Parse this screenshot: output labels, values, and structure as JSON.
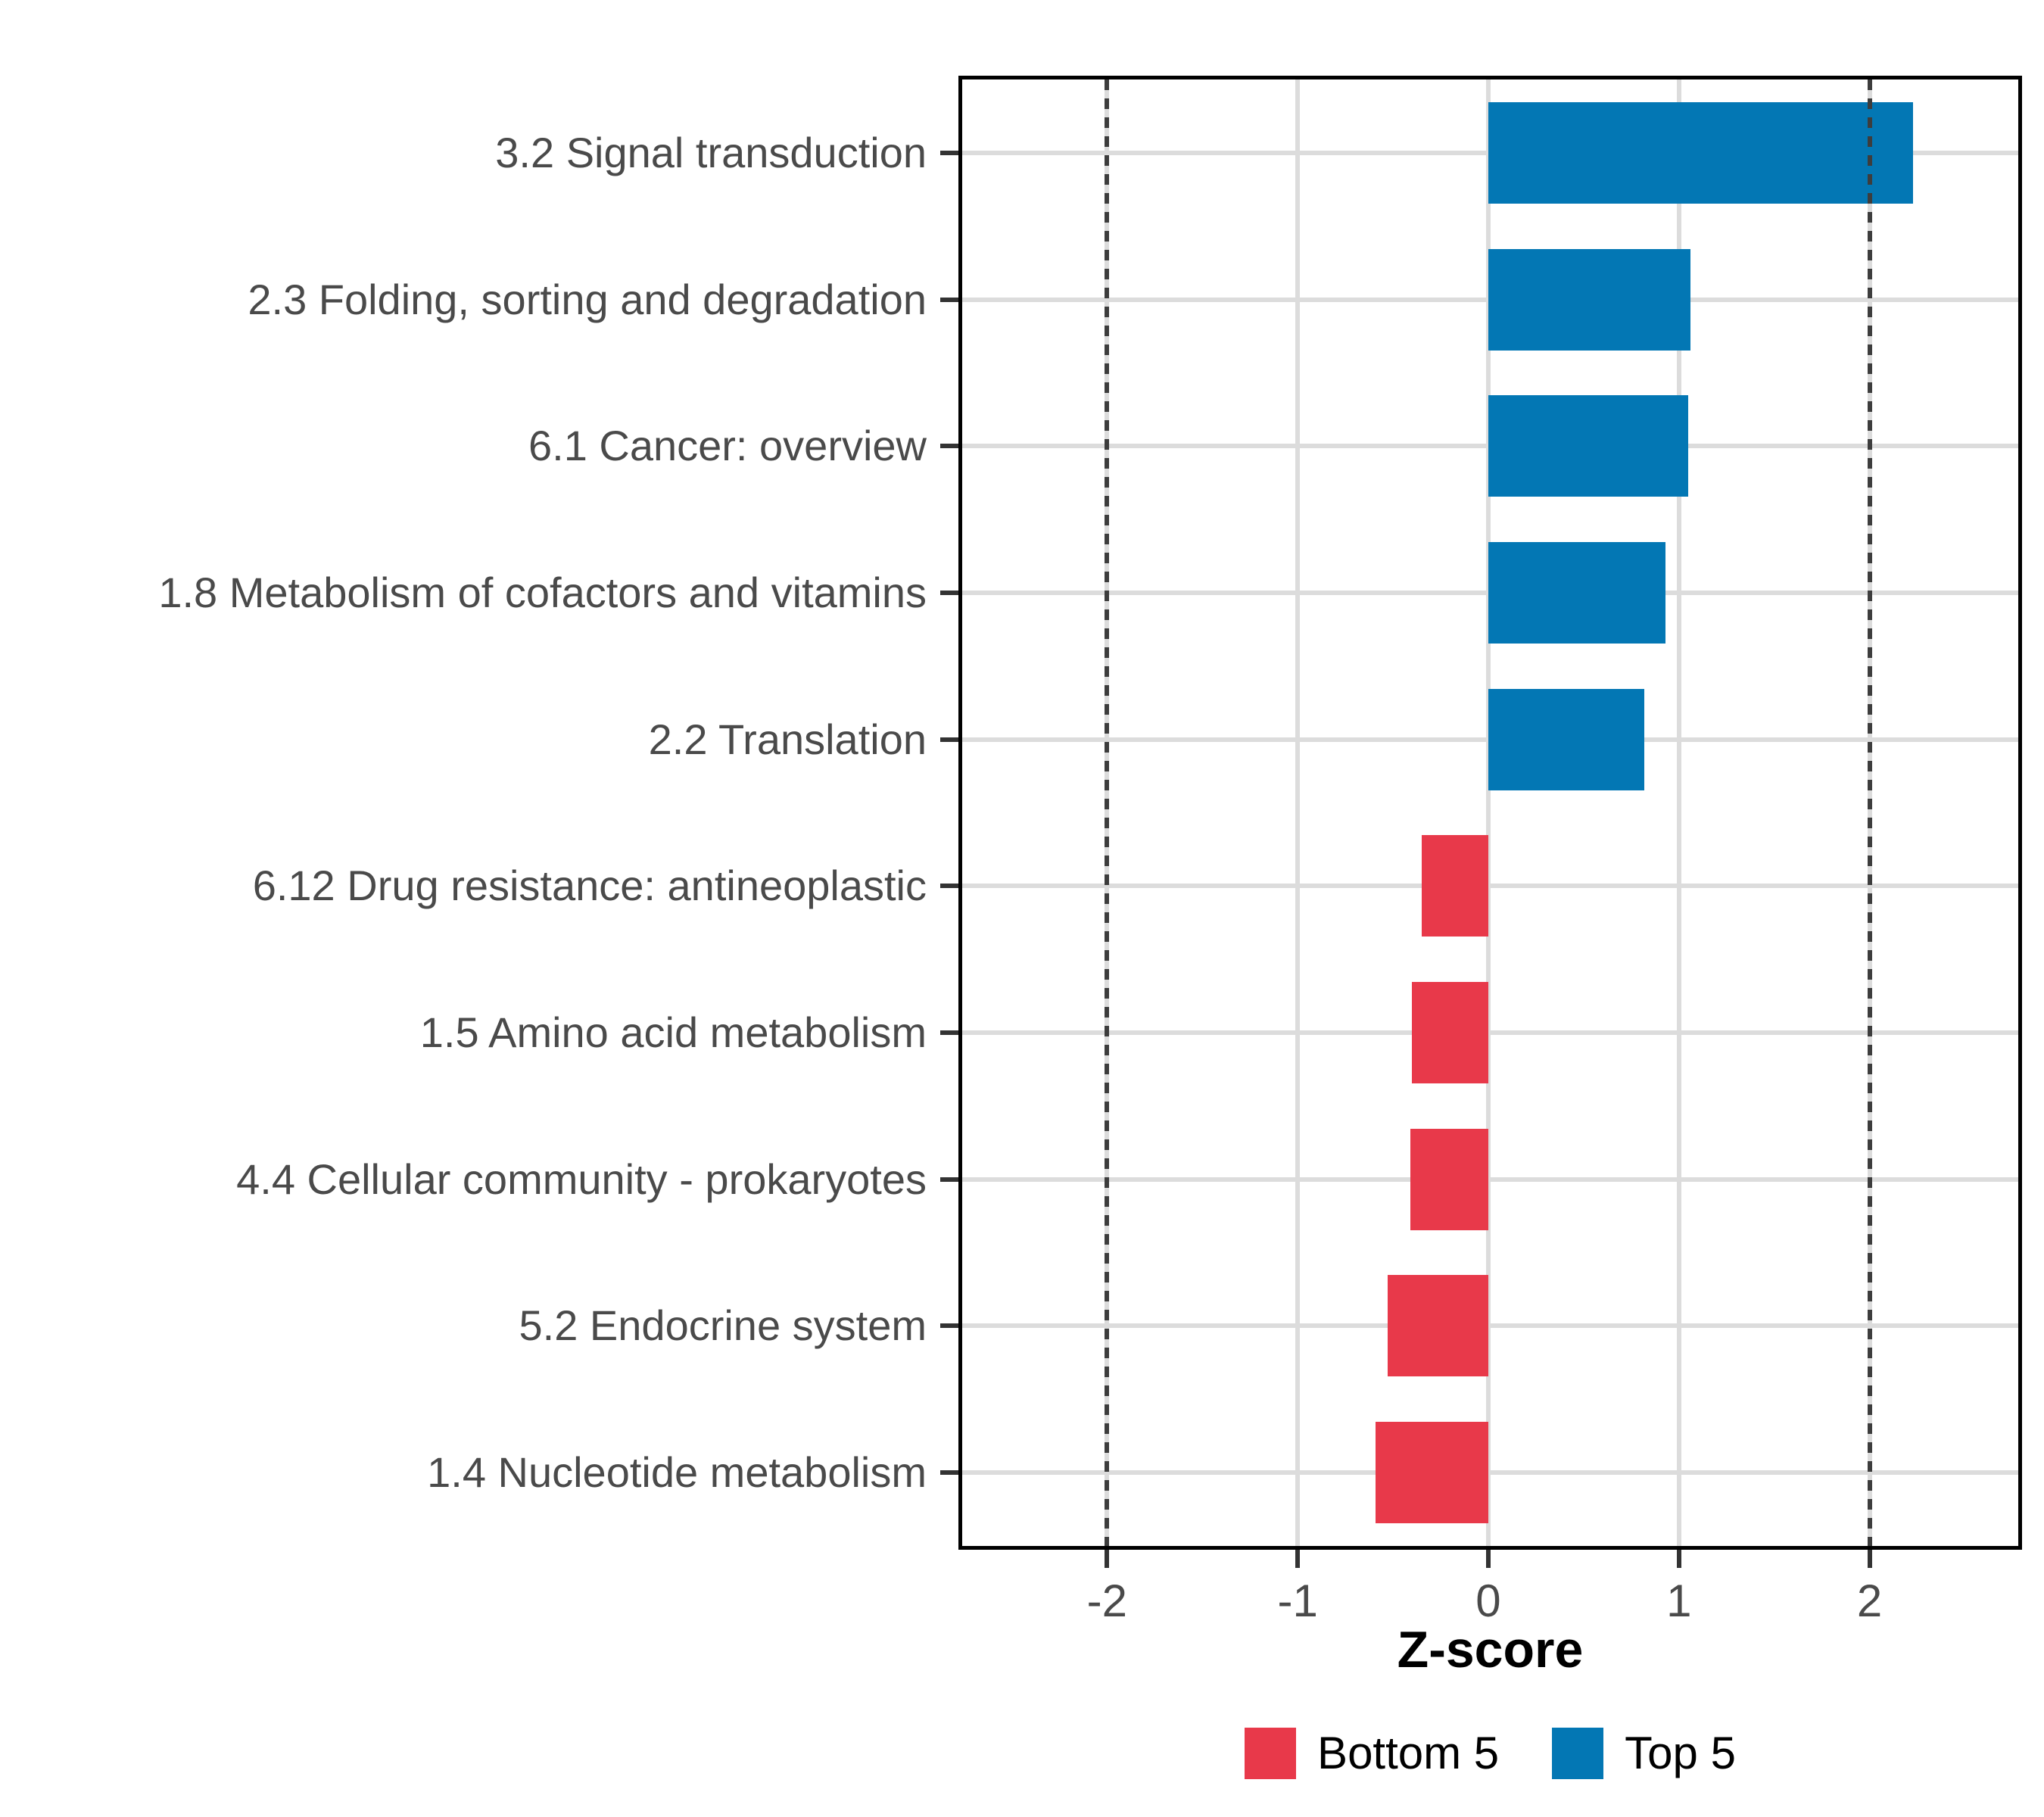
{
  "chart_data": {
    "type": "bar",
    "orientation": "horizontal",
    "title": "",
    "xlabel": "Z-score",
    "categories": [
      "3.2 Signal transduction",
      "2.3 Folding, sorting and degradation",
      "6.1 Cancer: overview",
      "1.8 Metabolism of cofactors and vitamins",
      "2.2 Translation",
      "6.12 Drug resistance: antineoplastic",
      "1.5 Amino acid metabolism",
      "4.4 Cellular community - prokaryotes",
      "5.2 Endocrine system",
      "1.4 Nucleotide metabolism"
    ],
    "values": [
      2.23,
      1.06,
      1.05,
      0.93,
      0.82,
      -0.35,
      -0.4,
      -0.41,
      -0.53,
      -0.59
    ],
    "groups": [
      "Top 5",
      "Top 5",
      "Top 5",
      "Top 5",
      "Top 5",
      "Bottom 5",
      "Bottom 5",
      "Bottom 5",
      "Bottom 5",
      "Bottom 5"
    ],
    "x_ticks": [
      -2,
      -1,
      0,
      1,
      2
    ],
    "x_tick_labels": [
      "-2",
      "-1",
      "0",
      "1",
      "2"
    ],
    "xlim": [
      -2.76,
      2.78
    ],
    "reference_lines": [
      -2,
      2
    ],
    "grid": true,
    "legend_position": "bottom",
    "legend": [
      {
        "label": "Bottom 5",
        "color": "#E8394A"
      },
      {
        "label": "Top 5",
        "color": "#0377B4"
      }
    ],
    "colors": {
      "top5_blue": "#0377B4",
      "bottom5_red": "#E8394A",
      "gridline": "#dcdcdc",
      "refline": "#3d3d3d",
      "axis_text": "#4a4a4a",
      "panel_border": "#000000"
    }
  }
}
